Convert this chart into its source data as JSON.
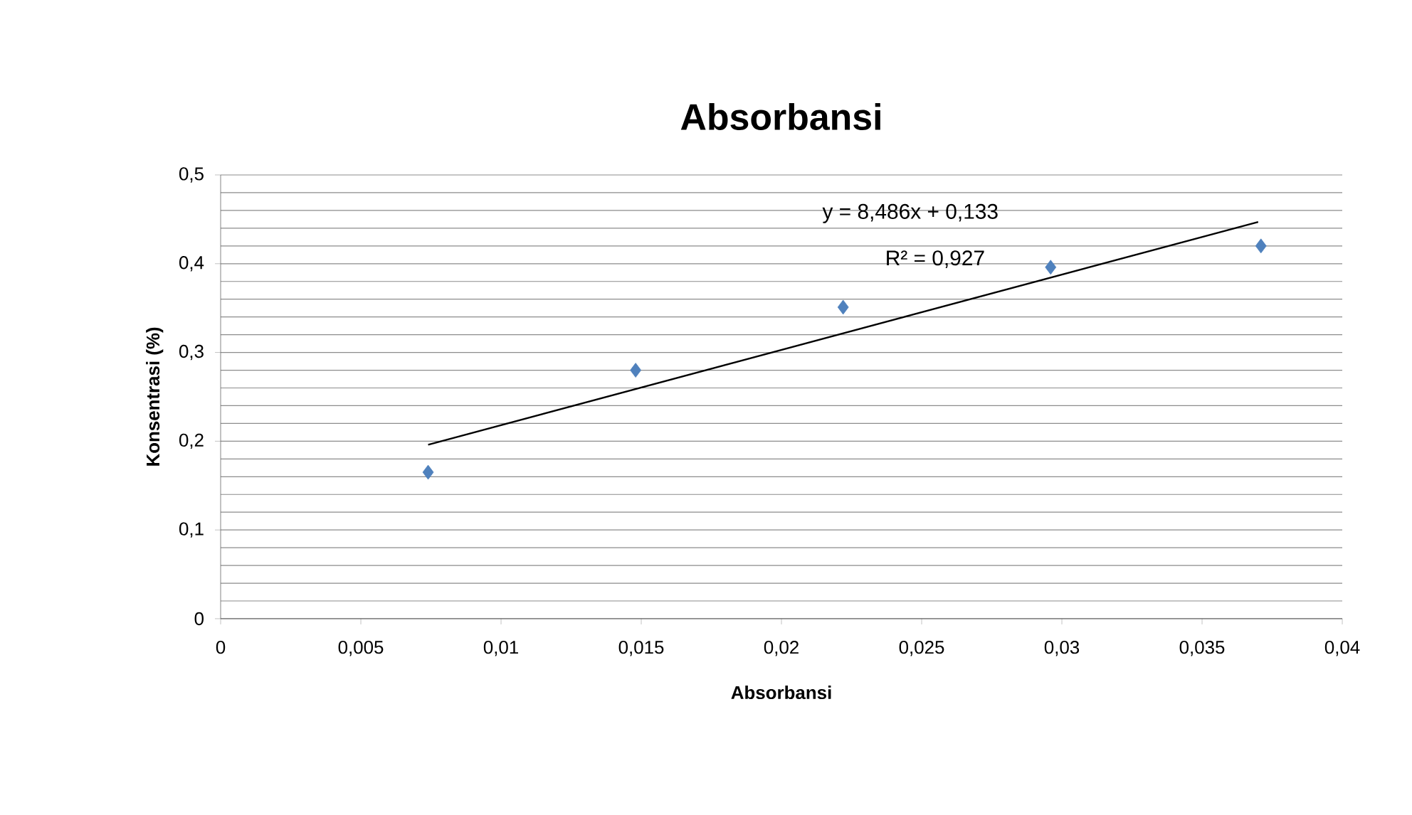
{
  "chart_data": {
    "type": "scatter",
    "title": "Absorbansi",
    "xlabel": "Absorbansi",
    "ylabel": "Konsentrasi (%)",
    "series": [
      {
        "marker": "diamond",
        "color": "#4f81bd",
        "x": [
          0.0074,
          0.0148,
          0.0222,
          0.0296,
          0.0371
        ],
        "values": [
          0.165,
          0.28,
          0.351,
          0.396,
          0.42
        ]
      },
      {
        "type": "line",
        "color": "#000000",
        "x": [
          0.0074,
          0.037
        ],
        "values": [
          0.196,
          0.447
        ]
      }
    ],
    "xlim": [
      0,
      0.04
    ],
    "xticks": [
      0,
      {
        "value": 0.005,
        "label": "0,005"
      },
      {
        "value": 0.01,
        "label": "0,01"
      },
      {
        "value": 0.015,
        "label": "0,015"
      },
      {
        "value": 0.02,
        "label": "0,02"
      },
      {
        "value": 0.025,
        "label": "0,025"
      },
      {
        "value": 0.03,
        "label": "0,03"
      },
      {
        "value": 0.035,
        "label": "0,035"
      },
      {
        "value": 0.04,
        "label": "0,04"
      }
    ],
    "ylim": [
      0,
      0.5
    ],
    "yticks": [
      0,
      {
        "value": 0.1,
        "label": "0,1"
      },
      {
        "value": 0.2,
        "label": "0,2"
      },
      {
        "value": 0.3,
        "label": "0,3"
      },
      {
        "value": 0.4,
        "label": "0,4"
      },
      {
        "value": 0.5,
        "label": "0,5"
      }
    ],
    "annotations": [
      "y = 8,486x + 0,133",
      "R² = 0,927"
    ],
    "grid": "y"
  }
}
